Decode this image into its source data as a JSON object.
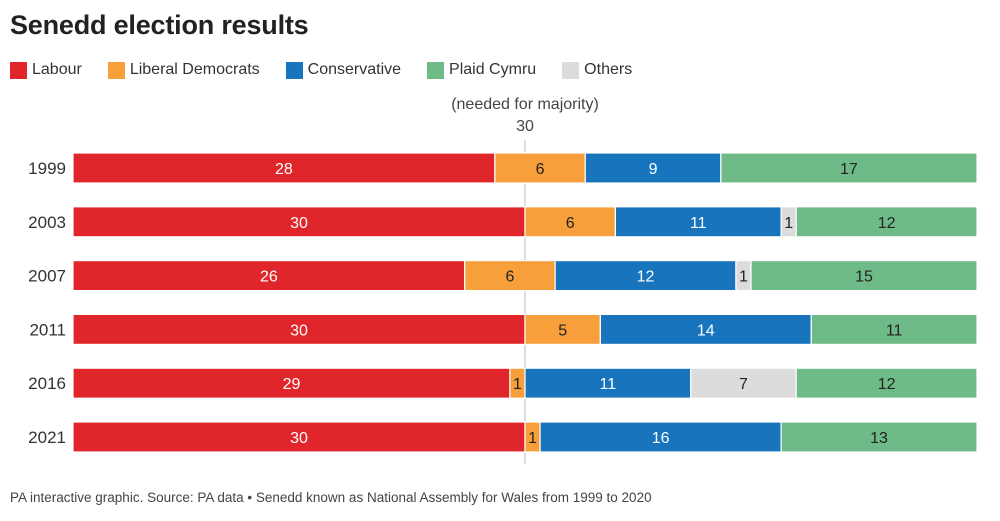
{
  "title": "Senedd election results",
  "source": "PA interactive graphic. Source: PA data • Senedd known as National Assembly for Wales from 1999 to 2020",
  "chart_data": {
    "type": "bar",
    "orientation": "horizontal",
    "stacked": true,
    "title": "Senedd election results",
    "categories": [
      "1999",
      "2003",
      "2007",
      "2011",
      "2016",
      "2021"
    ],
    "xlim": [
      0,
      60
    ],
    "majority_line": {
      "value": 30,
      "label_top": "(needed for majority)",
      "label_value": "30"
    },
    "legend_position": "top-left",
    "series": [
      {
        "name": "Labour",
        "color": "#e0262b",
        "label_color": "#ffffff",
        "values": [
          28,
          30,
          26,
          30,
          29,
          30
        ]
      },
      {
        "name": "Liberal Democrats",
        "color": "#f7a03b",
        "label_color": "#222222",
        "values": [
          6,
          6,
          6,
          5,
          1,
          1
        ]
      },
      {
        "name": "Conservative",
        "color": "#1875bd",
        "label_color": "#ffffff",
        "values": [
          9,
          11,
          12,
          14,
          11,
          16
        ]
      },
      {
        "name": "Others",
        "color": "#dcdcdc",
        "label_color": "#222222",
        "values": [
          0,
          1,
          1,
          0,
          7,
          0
        ]
      },
      {
        "name": "Plaid Cymru",
        "color": "#6fbb87",
        "label_color": "#222222",
        "values": [
          17,
          12,
          15,
          11,
          12,
          13
        ]
      }
    ],
    "legend_order": [
      "Labour",
      "Liberal Democrats",
      "Conservative",
      "Plaid Cymru",
      "Others"
    ]
  }
}
